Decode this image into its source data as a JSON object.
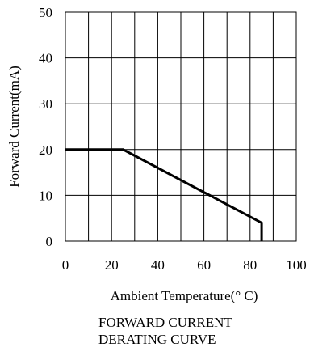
{
  "chart_data": {
    "type": "line",
    "title": "FORWARD CURRENT\nDERATING CURVE",
    "title_lines": [
      "FORWARD CURRENT",
      "DERATING CURVE"
    ],
    "xlabel": "Ambient Temperature(° C)",
    "ylabel": "Forward  Current(mA)",
    "xlim": [
      0,
      100
    ],
    "ylim": [
      0,
      50
    ],
    "xticks": [
      0,
      20,
      40,
      60,
      80,
      100
    ],
    "yticks": [
      0,
      10,
      20,
      30,
      40,
      50
    ],
    "xtick_labels": [
      "0",
      "20",
      "40",
      "60",
      "80",
      "100"
    ],
    "ytick_labels": [
      "0",
      "10",
      "20",
      "30",
      "40",
      "50"
    ],
    "grid": true,
    "x_grid_step": 10,
    "y_grid_step": 10,
    "series": [
      {
        "x": [
          0,
          25,
          85,
          85
        ],
        "y": [
          20,
          20,
          4,
          0
        ],
        "color": "#000000"
      }
    ]
  }
}
